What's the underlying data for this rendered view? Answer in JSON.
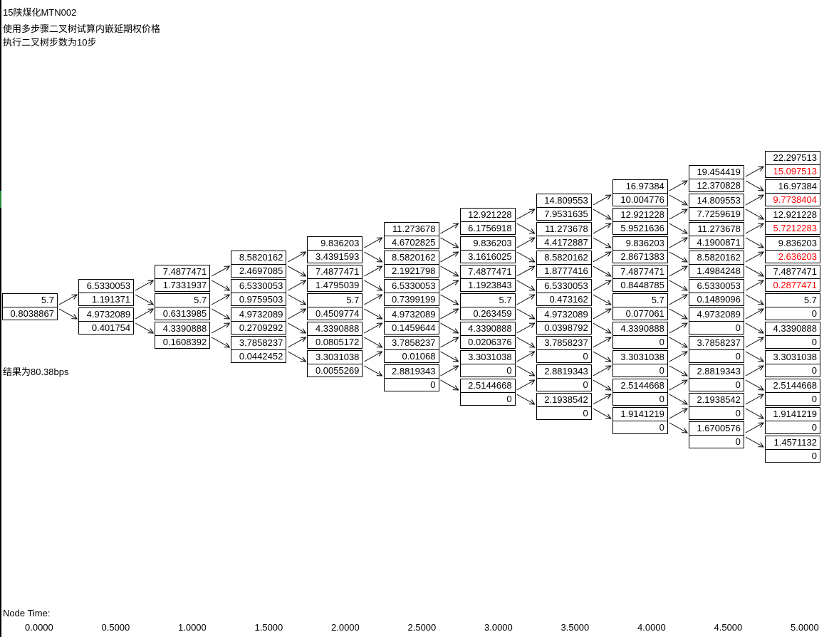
{
  "header": {
    "line1": "15陕煤化MTN002",
    "line2": "使用多步骤二叉树试算内嵌延期权价格",
    "line3": "执行二叉树步数为10步"
  },
  "result_text": "结果为80.38bps",
  "node_time_label": "Node Time:",
  "node_times": [
    "0.0000",
    "0.5000",
    "1.0000",
    "1.5000",
    "2.0000",
    "2.5000",
    "3.0000",
    "3.5000",
    "4.0000",
    "4.5000",
    "5.0000"
  ],
  "colors": {
    "highlight": "#ff0000",
    "line": "#000000",
    "left_marker": "#1f8a3b"
  },
  "tree": [
    [
      [
        "5.7",
        "0.8038867"
      ]
    ],
    [
      [
        "6.5330053",
        "1.191371"
      ],
      [
        "4.9732089",
        "0.401754"
      ]
    ],
    [
      [
        "7.4877471",
        "1.7331937"
      ],
      [
        "5.7",
        "0.6313985"
      ],
      [
        "4.3390888",
        "0.1608392"
      ]
    ],
    [
      [
        "8.5820162",
        "2.4697085"
      ],
      [
        "6.5330053",
        "0.9759503"
      ],
      [
        "4.9732089",
        "0.2709292"
      ],
      [
        "3.7858237",
        "0.0442452"
      ]
    ],
    [
      [
        "9.836203",
        "3.4391593"
      ],
      [
        "7.4877471",
        "1.4795039"
      ],
      [
        "5.7",
        "0.4509774"
      ],
      [
        "4.3390888",
        "0.0805172"
      ],
      [
        "3.3031038",
        "0.0055269"
      ]
    ],
    [
      [
        "11.273678",
        "4.6702825"
      ],
      [
        "8.5820162",
        "2.1921798"
      ],
      [
        "6.5330053",
        "0.7399199"
      ],
      [
        "4.9732089",
        "0.1459644"
      ],
      [
        "3.7858237",
        "0.01068"
      ],
      [
        "2.8819343",
        "0"
      ]
    ],
    [
      [
        "12.921228",
        "6.1756918"
      ],
      [
        "9.836203",
        "3.1616025"
      ],
      [
        "7.4877471",
        "1.1923843"
      ],
      [
        "5.7",
        "0.263459"
      ],
      [
        "4.3390888",
        "0.0206376"
      ],
      [
        "3.3031038",
        "0"
      ],
      [
        "2.5144668",
        "0"
      ]
    ],
    [
      [
        "14.809553",
        "7.9531635"
      ],
      [
        "11.273678",
        "4.4172887"
      ],
      [
        "8.5820162",
        "1.8777416"
      ],
      [
        "6.5330053",
        "0.473162"
      ],
      [
        "4.9732089",
        "0.0398792"
      ],
      [
        "3.7858237",
        "0"
      ],
      [
        "2.8819343",
        "0"
      ],
      [
        "2.1938542",
        "0"
      ]
    ],
    [
      [
        "16.97384",
        "10.004776"
      ],
      [
        "12.921228",
        "5.9521636"
      ],
      [
        "9.836203",
        "2.8671383"
      ],
      [
        "7.4877471",
        "0.8448785"
      ],
      [
        "5.7",
        "0.077061"
      ],
      [
        "4.3390888",
        "0"
      ],
      [
        "3.3031038",
        "0"
      ],
      [
        "2.5144668",
        "0"
      ],
      [
        "1.9141219",
        "0"
      ]
    ],
    [
      [
        "19.454419",
        "12.370828"
      ],
      [
        "14.809553",
        "7.7259619"
      ],
      [
        "11.273678",
        "4.1900871"
      ],
      [
        "8.5820162",
        "1.4984248"
      ],
      [
        "6.5330053",
        "0.1489096"
      ],
      [
        "4.9732089",
        "0"
      ],
      [
        "3.7858237",
        "0"
      ],
      [
        "2.8819343",
        "0"
      ],
      [
        "2.1938542",
        "0"
      ],
      [
        "1.6700576",
        "0"
      ]
    ],
    [
      [
        "22.297513",
        "15.097513"
      ],
      [
        "16.97384",
        "9.7738404"
      ],
      [
        "12.921228",
        "5.7212283"
      ],
      [
        "9.836203",
        "2.636203"
      ],
      [
        "7.4877471",
        "0.2877471"
      ],
      [
        "5.7",
        "0"
      ],
      [
        "4.3390888",
        "0"
      ],
      [
        "3.3031038",
        "0"
      ],
      [
        "2.5144668",
        "0"
      ],
      [
        "1.9141219",
        "0"
      ],
      [
        "1.4571132",
        "0"
      ]
    ]
  ],
  "highlighted_nodes": [
    [
      10,
      0
    ],
    [
      10,
      1
    ],
    [
      10,
      2
    ],
    [
      10,
      3
    ],
    [
      10,
      4
    ]
  ]
}
